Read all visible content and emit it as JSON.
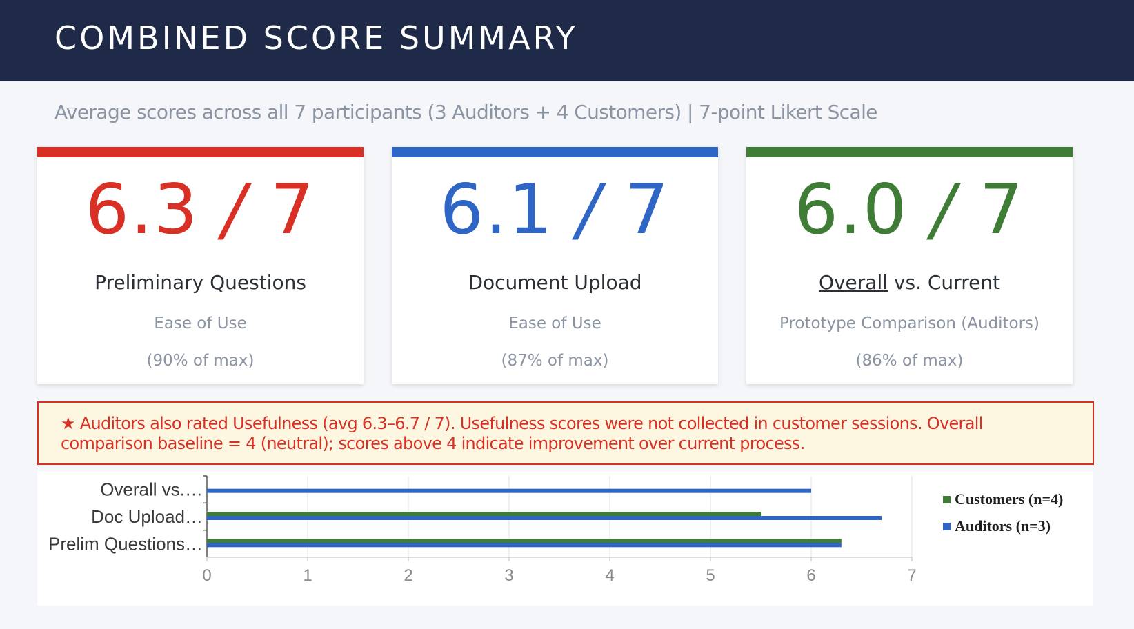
{
  "header": {
    "title": "COMBINED SCORE SUMMARY"
  },
  "subtitle": "Average scores across all 7 participants (3 Auditors + 4 Customers) | 7-point Likert Scale",
  "cards": [
    {
      "score": "6.3",
      "slash": "/",
      "max": "7",
      "title": "Preliminary Questions",
      "subtitle": "Ease of Use",
      "percent": "(90% of max)",
      "color": "#d93025"
    },
    {
      "score": "6.1",
      "slash": "/",
      "max": "7",
      "title": "Document Upload",
      "subtitle": "Ease of Use",
      "percent": "(87% of max)",
      "color": "#2f66c6"
    },
    {
      "score": "6.0",
      "slash": "/",
      "max": "7",
      "title_underlined": "Overall",
      "title_rest": " vs. Current",
      "subtitle": "Prototype Comparison (Auditors)",
      "percent": "(86% of max)",
      "color": "#3f7d36"
    }
  ],
  "note": {
    "star": "★",
    "text": " Auditors also rated Usefulness (avg 6.3–6.7 / 7). Usefulness scores were not collected in customer sessions. Overall comparison baseline = 4 (neutral); scores above 4 indicate improvement over current process."
  },
  "chart_data": {
    "type": "bar",
    "orientation": "horizontal",
    "categories": [
      "Prelim Questions…",
      "Doc Upload…",
      "Overall vs.…"
    ],
    "series": [
      {
        "name": "Customers (n=4)",
        "values": [
          6.3,
          5.5,
          null
        ],
        "color": "#3f7d36"
      },
      {
        "name": "Auditors (n=3)",
        "values": [
          6.3,
          6.7,
          6.0
        ],
        "color": "#2f66c6"
      }
    ],
    "xlim": [
      0,
      7
    ],
    "xticks": [
      "0",
      "1",
      "2",
      "3",
      "4",
      "5",
      "6",
      "7"
    ],
    "grid": true,
    "legend_position": "right"
  }
}
